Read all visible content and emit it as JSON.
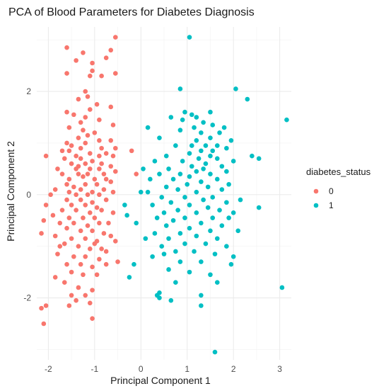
{
  "chart_data": {
    "type": "scatter",
    "title": "PCA of Blood Parameters for Diabetes Diagnosis",
    "xlabel": "Principal Component 1",
    "ylabel": "Principal Component 2",
    "xlim": [
      -2.25,
      3.25
    ],
    "ylim": [
      -3.2,
      3.25
    ],
    "xticks": [
      -2,
      -1,
      0,
      1,
      2,
      3
    ],
    "yticks": [
      -2,
      0,
      2
    ],
    "grid": true,
    "legend": {
      "title": "diabetes_status",
      "placement": "right",
      "entries": [
        {
          "label": "0",
          "color": "#F8766D"
        },
        {
          "label": "1",
          "color": "#00BFC4"
        }
      ]
    },
    "series": [
      {
        "name": "0",
        "color": "#F8766D",
        "points": [
          [
            -0.55,
            3.05
          ],
          [
            -1.6,
            2.85
          ],
          [
            -1.25,
            2.75
          ],
          [
            -0.65,
            2.8
          ],
          [
            -0.75,
            2.65
          ],
          [
            -1.4,
            2.6
          ],
          [
            -1.05,
            2.55
          ],
          [
            -1.05,
            2.4
          ],
          [
            -1.6,
            2.35
          ],
          [
            -1.1,
            2.3
          ],
          [
            -0.85,
            2.3
          ],
          [
            -0.55,
            2.35
          ],
          [
            -1.2,
            2.0
          ],
          [
            -1.15,
            1.9
          ],
          [
            -1.35,
            1.85
          ],
          [
            -0.95,
            1.75
          ],
          [
            -1.1,
            1.65
          ],
          [
            -0.65,
            1.7
          ],
          [
            -1.6,
            1.6
          ],
          [
            -1.45,
            1.55
          ],
          [
            -1.2,
            1.5
          ],
          [
            -1.3,
            1.4
          ],
          [
            -0.9,
            1.45
          ],
          [
            -1.55,
            1.3
          ],
          [
            -0.6,
            1.35
          ],
          [
            -1.25,
            1.25
          ],
          [
            -1.0,
            1.2
          ],
          [
            -1.35,
            1.1
          ],
          [
            -1.15,
            1.15
          ],
          [
            -0.9,
            1.05
          ],
          [
            -0.65,
            1.05
          ],
          [
            -1.6,
            1.0
          ],
          [
            -1.5,
            0.95
          ],
          [
            -1.7,
            0.85
          ],
          [
            -1.2,
            1.0
          ],
          [
            -1.3,
            0.9
          ],
          [
            -0.85,
            0.9
          ],
          [
            -0.55,
            0.9
          ],
          [
            -1.55,
            0.85
          ],
          [
            -2.05,
            0.75
          ],
          [
            -1.4,
            0.75
          ],
          [
            -1.1,
            0.8
          ],
          [
            -0.9,
            0.75
          ],
          [
            -0.75,
            0.8
          ],
          [
            -0.6,
            0.75
          ],
          [
            -1.65,
            0.7
          ],
          [
            -1.3,
            0.7
          ],
          [
            -1.05,
            0.65
          ],
          [
            -0.2,
            0.85
          ],
          [
            -1.5,
            0.6
          ],
          [
            -1.2,
            0.6
          ],
          [
            -0.85,
            0.6
          ],
          [
            -0.65,
            0.55
          ],
          [
            -1.8,
            0.5
          ],
          [
            -1.4,
            0.5
          ],
          [
            -1.1,
            0.5
          ],
          [
            -0.9,
            0.5
          ],
          [
            -1.7,
            0.4
          ],
          [
            -1.35,
            0.4
          ],
          [
            -1.15,
            0.4
          ],
          [
            -0.8,
            0.4
          ],
          [
            -0.55,
            0.45
          ],
          [
            -1.25,
            0.35
          ],
          [
            -1.55,
            0.3
          ],
          [
            -1.0,
            0.3
          ],
          [
            -0.75,
            0.3
          ],
          [
            -1.6,
            0.2
          ],
          [
            -1.45,
            0.15
          ],
          [
            -1.2,
            0.2
          ],
          [
            -0.95,
            0.2
          ],
          [
            -0.65,
            0.25
          ],
          [
            -0.1,
            0.4
          ],
          [
            -1.85,
            0.1
          ],
          [
            -1.55,
            0.05
          ],
          [
            -1.3,
            0.1
          ],
          [
            -1.05,
            0.05
          ],
          [
            -0.8,
            0.1
          ],
          [
            -1.95,
            0.0
          ],
          [
            -1.4,
            0.0
          ],
          [
            -1.15,
            0.0
          ],
          [
            -0.9,
            0.0
          ],
          [
            -0.6,
            0.05
          ],
          [
            -1.6,
            -0.1
          ],
          [
            -1.3,
            -0.1
          ],
          [
            -1.05,
            -0.15
          ],
          [
            -0.75,
            -0.1
          ],
          [
            -2.05,
            -0.2
          ],
          [
            -1.5,
            -0.2
          ],
          [
            -1.2,
            -0.2
          ],
          [
            -0.95,
            -0.25
          ],
          [
            -1.7,
            -0.3
          ],
          [
            -1.4,
            -0.3
          ],
          [
            -1.1,
            -0.35
          ],
          [
            -0.85,
            -0.3
          ],
          [
            -0.6,
            -0.35
          ],
          [
            -1.9,
            -0.4
          ],
          [
            -1.55,
            -0.45
          ],
          [
            -1.25,
            -0.45
          ],
          [
            -1.0,
            -0.45
          ],
          [
            -2.1,
            -0.5
          ],
          [
            -1.75,
            -0.55
          ],
          [
            -1.45,
            -0.55
          ],
          [
            -1.15,
            -0.6
          ],
          [
            -0.9,
            -0.55
          ],
          [
            -0.7,
            -0.55
          ],
          [
            -1.6,
            -0.65
          ],
          [
            -1.3,
            -0.7
          ],
          [
            -1.05,
            -0.7
          ],
          [
            -0.8,
            -0.75
          ],
          [
            -2.15,
            -0.75
          ],
          [
            -1.85,
            -0.8
          ],
          [
            -1.5,
            -0.85
          ],
          [
            -1.2,
            -0.85
          ],
          [
            -0.95,
            -0.9
          ],
          [
            -0.65,
            -0.8
          ],
          [
            -0.55,
            -0.9
          ],
          [
            -1.65,
            -0.95
          ],
          [
            -1.35,
            -1.0
          ],
          [
            -1.1,
            -1.05
          ],
          [
            -0.85,
            -1.05
          ],
          [
            -1.8,
            -1.15
          ],
          [
            -1.45,
            -1.2
          ],
          [
            -1.2,
            -1.2
          ],
          [
            -0.9,
            -1.25
          ],
          [
            -1.6,
            -1.35
          ],
          [
            -1.3,
            -1.35
          ],
          [
            -1.05,
            -1.4
          ],
          [
            -0.75,
            -1.35
          ],
          [
            -1.5,
            -1.5
          ],
          [
            -1.25,
            -1.55
          ],
          [
            -0.95,
            -1.55
          ],
          [
            -0.5,
            -1.3
          ],
          [
            -1.65,
            -1.7
          ],
          [
            -1.35,
            -1.8
          ],
          [
            -1.05,
            -1.85
          ],
          [
            -1.5,
            -1.95
          ],
          [
            -1.2,
            -1.95
          ],
          [
            -1.4,
            -2.05
          ],
          [
            -2.05,
            -2.15
          ],
          [
            -1.55,
            -2.15
          ],
          [
            -1.1,
            -2.1
          ],
          [
            -2.15,
            -2.2
          ],
          [
            -1.05,
            -2.4
          ],
          [
            -2.1,
            -2.5
          ],
          [
            -1.85,
            -1.6
          ],
          [
            -1.75,
            -1.0
          ],
          [
            -0.75,
            -1.1
          ],
          [
            -1.35,
            0.55
          ],
          [
            -1.0,
            -0.95
          ]
        ]
      },
      {
        "name": "1",
        "color": "#00BFC4",
        "points": [
          [
            1.05,
            3.05
          ],
          [
            2.05,
            2.05
          ],
          [
            0.85,
            2.05
          ],
          [
            2.3,
            1.85
          ],
          [
            0.95,
            1.6
          ],
          [
            1.1,
            1.55
          ],
          [
            1.5,
            1.6
          ],
          [
            0.65,
            1.5
          ],
          [
            1.2,
            1.5
          ],
          [
            1.55,
            1.35
          ],
          [
            3.15,
            1.45
          ],
          [
            0.9,
            1.45
          ],
          [
            1.35,
            1.4
          ],
          [
            1.8,
            1.3
          ],
          [
            1.15,
            1.3
          ],
          [
            0.15,
            1.3
          ],
          [
            0.85,
            1.25
          ],
          [
            1.3,
            1.2
          ],
          [
            1.7,
            1.2
          ],
          [
            1.5,
            1.1
          ],
          [
            1.95,
            1.05
          ],
          [
            0.4,
            1.1
          ],
          [
            1.2,
            1.05
          ],
          [
            1.65,
            0.95
          ],
          [
            1.4,
            0.95
          ],
          [
            1.85,
            0.9
          ],
          [
            1.1,
            0.95
          ],
          [
            0.75,
            0.95
          ],
          [
            1.55,
            0.85
          ],
          [
            2.4,
            0.75
          ],
          [
            2.55,
            0.7
          ],
          [
            1.3,
            0.85
          ],
          [
            1.05,
            0.8
          ],
          [
            1.5,
            0.75
          ],
          [
            0.55,
            0.75
          ],
          [
            1.25,
            0.7
          ],
          [
            1.65,
            0.7
          ],
          [
            2.0,
            0.65
          ],
          [
            0.9,
            0.65
          ],
          [
            1.4,
            0.6
          ],
          [
            0.3,
            0.65
          ],
          [
            1.75,
            0.55
          ],
          [
            1.1,
            0.55
          ],
          [
            0.6,
            0.5
          ],
          [
            1.35,
            0.5
          ],
          [
            0.05,
            0.5
          ],
          [
            1.85,
            0.45
          ],
          [
            1.2,
            0.45
          ],
          [
            0.85,
            0.4
          ],
          [
            1.5,
            0.4
          ],
          [
            0.4,
            0.4
          ],
          [
            1.05,
            0.35
          ],
          [
            1.65,
            0.3
          ],
          [
            0.7,
            0.3
          ],
          [
            0.2,
            0.3
          ],
          [
            1.3,
            0.25
          ],
          [
            1.9,
            0.2
          ],
          [
            1.0,
            0.2
          ],
          [
            0.55,
            0.15
          ],
          [
            1.45,
            0.15
          ],
          [
            1.75,
            0.1
          ],
          [
            0.8,
            0.1
          ],
          [
            0.15,
            0.05
          ],
          [
            1.2,
            0.05
          ],
          [
            0.95,
            -0.05
          ],
          [
            1.55,
            -0.05
          ],
          [
            0.45,
            -0.05
          ],
          [
            2.15,
            -0.1
          ],
          [
            1.35,
            -0.1
          ],
          [
            0.65,
            -0.15
          ],
          [
            1.85,
            -0.15
          ],
          [
            1.05,
            -0.2
          ],
          [
            0.25,
            -0.2
          ],
          [
            2.55,
            -0.25
          ],
          [
            1.45,
            -0.25
          ],
          [
            0.8,
            -0.3
          ],
          [
            1.7,
            -0.3
          ],
          [
            0.5,
            -0.35
          ],
          [
            2.0,
            -0.35
          ],
          [
            1.2,
            -0.35
          ],
          [
            -0.3,
            -0.4
          ],
          [
            0.95,
            -0.45
          ],
          [
            1.55,
            -0.45
          ],
          [
            0.35,
            -0.45
          ],
          [
            1.9,
            -0.45
          ],
          [
            0.7,
            -0.5
          ],
          [
            1.3,
            -0.55
          ],
          [
            -0.1,
            -0.55
          ],
          [
            1.75,
            -0.6
          ],
          [
            0.55,
            -0.6
          ],
          [
            1.05,
            -0.65
          ],
          [
            1.5,
            -0.7
          ],
          [
            0.85,
            -0.75
          ],
          [
            0.3,
            -0.75
          ],
          [
            2.1,
            -0.7
          ],
          [
            1.2,
            -0.8
          ],
          [
            0.6,
            -0.85
          ],
          [
            1.65,
            -0.85
          ],
          [
            0.1,
            -0.85
          ],
          [
            1.4,
            -0.95
          ],
          [
            0.95,
            -0.95
          ],
          [
            0.45,
            -1.0
          ],
          [
            1.85,
            -1.0
          ],
          [
            0.75,
            -1.1
          ],
          [
            0.5,
            -1.15
          ],
          [
            1.15,
            -1.1
          ],
          [
            1.6,
            -1.15
          ],
          [
            0.25,
            -1.2
          ],
          [
            2.0,
            -1.2
          ],
          [
            0.85,
            -1.3
          ],
          [
            1.3,
            -1.3
          ],
          [
            1.95,
            -1.35
          ],
          [
            0.6,
            -1.45
          ],
          [
            -0.15,
            -1.35
          ],
          [
            1.05,
            -1.5
          ],
          [
            1.5,
            -1.55
          ],
          [
            -0.25,
            -1.6
          ],
          [
            0.75,
            -1.7
          ],
          [
            1.65,
            -1.7
          ],
          [
            0.35,
            -1.95
          ],
          [
            1.3,
            -1.95
          ],
          [
            0.4,
            -2.0
          ],
          [
            3.05,
            -1.8
          ],
          [
            0.65,
            -2.05
          ],
          [
            1.3,
            -2.15
          ],
          [
            1.6,
            -3.05
          ],
          [
            0.4,
            -1.9
          ],
          [
            -0.35,
            -0.2
          ],
          [
            0.0,
            0.05
          ]
        ]
      }
    ]
  }
}
